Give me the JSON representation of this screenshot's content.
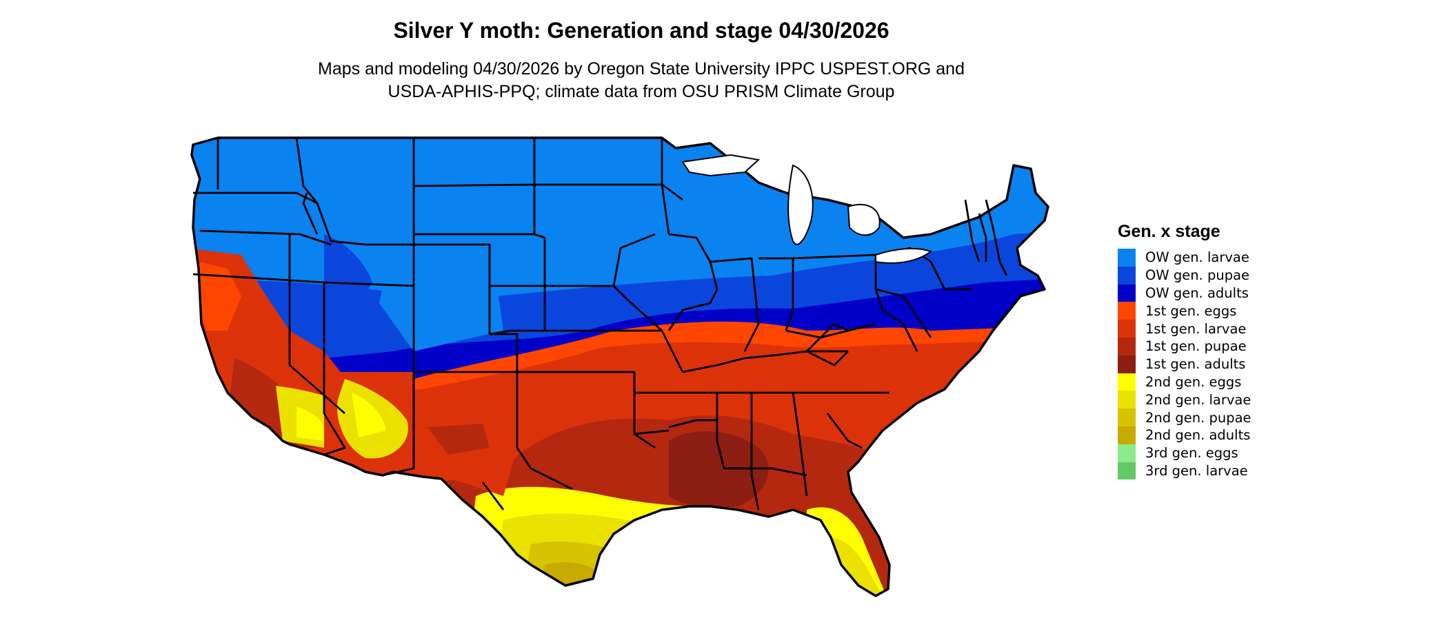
{
  "header": {
    "title": "Silver Y moth: Generation and stage 04/30/2026",
    "subtitle_line1": "Maps and modeling 04/30/2026 by Oregon State University IPPC USPEST.ORG and",
    "subtitle_line2": "USDA-APHIS-PPQ; climate data from OSU PRISM Climate Group"
  },
  "legend": {
    "title": "Gen. x stage",
    "items": [
      {
        "label": "OW gen. larvae",
        "color": "#0A82F0"
      },
      {
        "label": "OW gen. pupae",
        "color": "#0A46DC"
      },
      {
        "label": "OW gen. adults",
        "color": "#0000C8"
      },
      {
        "label": "1st gen. eggs",
        "color": "#FF4600"
      },
      {
        "label": "1st gen. larvae",
        "color": "#DC320A"
      },
      {
        "label": "1st gen. pupae",
        "color": "#B4280F"
      },
      {
        "label": "1st gen. adults",
        "color": "#8C1E14"
      },
      {
        "label": "2nd gen. eggs",
        "color": "#FFFF00"
      },
      {
        "label": "2nd gen. larvae",
        "color": "#EBE100"
      },
      {
        "label": "2nd gen. pupae",
        "color": "#D7C300"
      },
      {
        "label": "2nd gen. adults",
        "color": "#C8AA00"
      },
      {
        "label": "3rd gen. eggs",
        "color": "#8CEB8C"
      },
      {
        "label": "3rd gen. larvae",
        "color": "#64C864"
      }
    ]
  }
}
